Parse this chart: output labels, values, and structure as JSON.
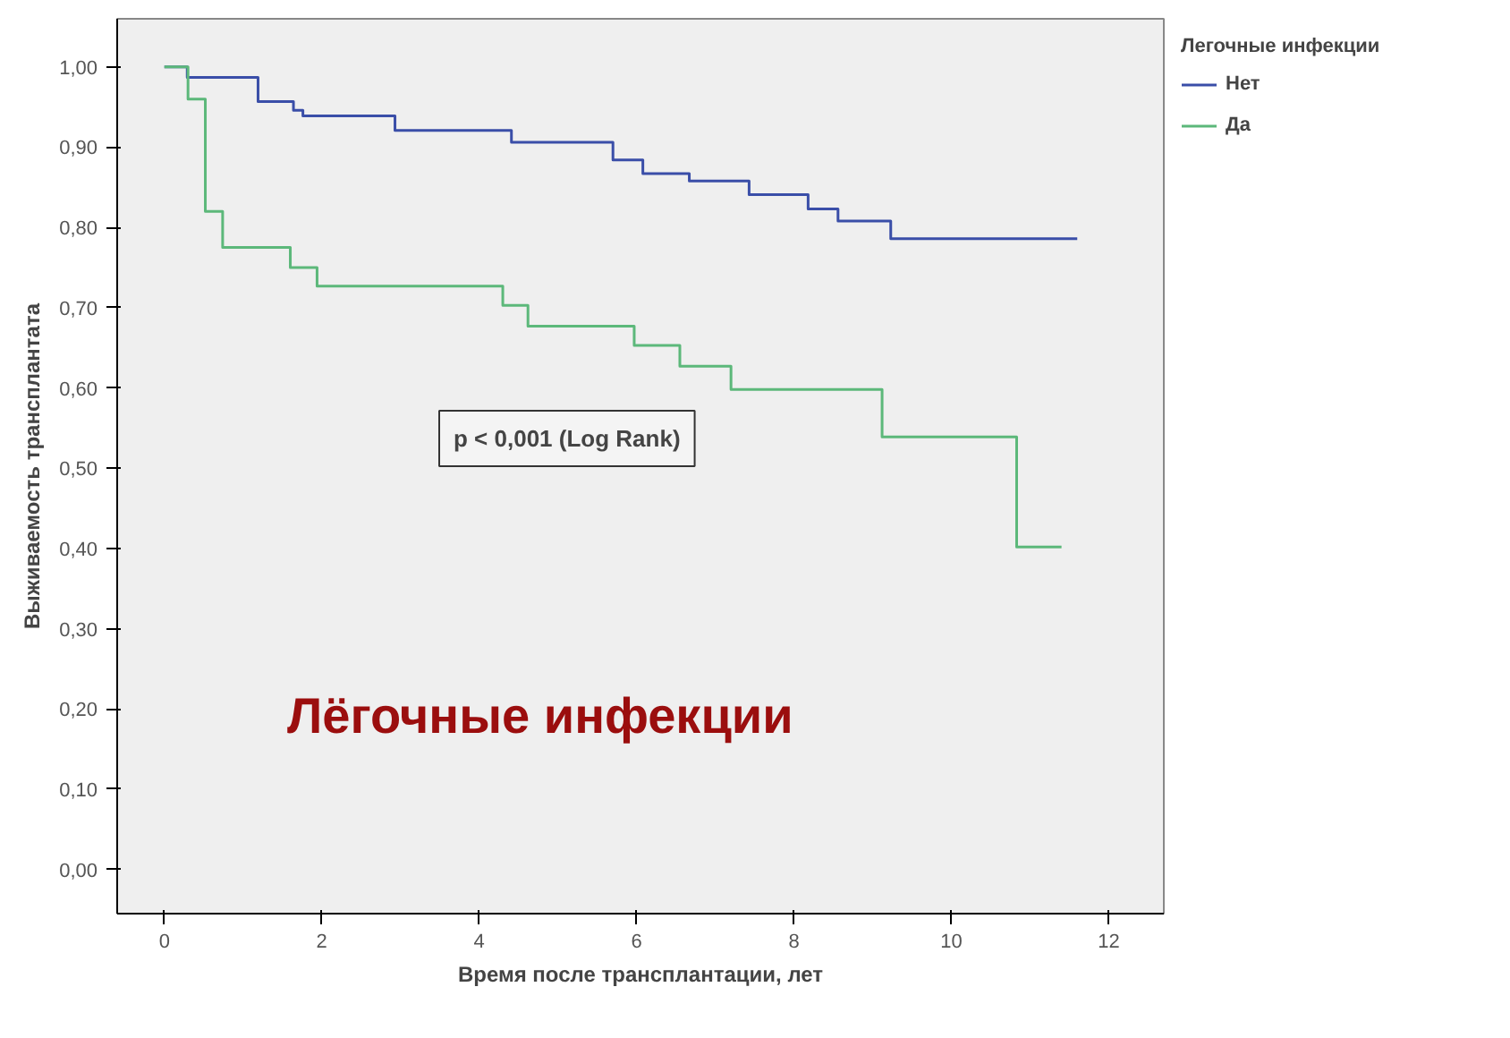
{
  "chart_data": {
    "type": "step",
    "xlabel": "Время после трансплантации, лет",
    "ylabel": "Выживаемость трансплантата",
    "legend_title": "Легочные инфекции",
    "legend": "top right",
    "grid": false,
    "xlim": [
      -0.6,
      12.7
    ],
    "xticks": [
      0,
      2,
      4,
      6,
      8,
      10,
      12
    ],
    "ylim": [
      -0.055,
      1.06
    ],
    "yticks": [
      {
        "value": 0,
        "label": "0,00"
      },
      {
        "value": 0.1,
        "label": "0,10"
      },
      {
        "value": 0.2,
        "label": "0,20"
      },
      {
        "value": 0.3,
        "label": "0,30"
      },
      {
        "value": 0.4,
        "label": "0,40"
      },
      {
        "value": 0.5,
        "label": "0,50"
      },
      {
        "value": 0.6,
        "label": "0,60"
      },
      {
        "value": 0.7,
        "label": "0,70"
      },
      {
        "value": 0.8,
        "label": "0,80"
      },
      {
        "value": 0.9,
        "label": "0,90"
      },
      {
        "value": 1.0,
        "label": "1,00"
      }
    ],
    "series": [
      {
        "name": "Нет",
        "color": "#3a4ea8",
        "x": [
          0,
          0.29,
          1.19,
          1.64,
          1.76,
          2.93,
          4.41,
          5.7,
          6.08,
          6.67,
          7.43,
          8.18,
          8.56,
          9.23,
          11.6
        ],
        "values": [
          1.0,
          0.987,
          0.957,
          0.946,
          0.939,
          0.921,
          0.906,
          0.884,
          0.867,
          0.858,
          0.841,
          0.823,
          0.808,
          0.786,
          0.786
        ]
      },
      {
        "name": "Да",
        "color": "#5cb87a",
        "x": [
          0,
          0.3,
          0.52,
          0.74,
          1.6,
          1.94,
          4.3,
          4.62,
          5.97,
          6.55,
          7.2,
          9.12,
          10.83,
          11.4
        ],
        "values": [
          1.0,
          0.96,
          0.82,
          0.775,
          0.75,
          0.727,
          0.703,
          0.677,
          0.653,
          0.627,
          0.598,
          0.539,
          0.402,
          0.402
        ]
      }
    ],
    "annotations": [
      "p < 0,001 (Log Rank)",
      "Лёгочные инфекции"
    ]
  }
}
